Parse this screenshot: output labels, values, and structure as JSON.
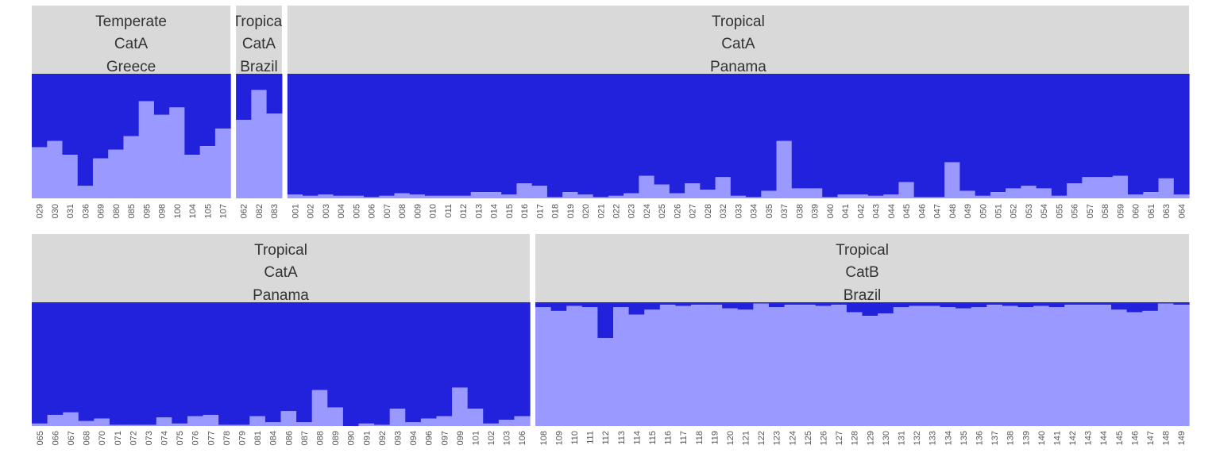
{
  "chart_data": {
    "type": "bar",
    "stacked": true,
    "ylim": [
      0,
      1
    ],
    "colors": {
      "lower": "#9999ff",
      "upper": "#2222dd",
      "strip": "#d9d9d9"
    },
    "panels": [
      {
        "row": 0,
        "strip": [
          "Temperate",
          "CatA",
          "Greece"
        ],
        "categories": [
          "029",
          "030",
          "031",
          "036",
          "069",
          "080",
          "085",
          "095",
          "098",
          "100",
          "104",
          "105",
          "107"
        ],
        "values": [
          0.41,
          0.46,
          0.35,
          0.1,
          0.32,
          0.39,
          0.5,
          0.78,
          0.67,
          0.73,
          0.35,
          0.42,
          0.56
        ]
      },
      {
        "row": 0,
        "strip": [
          "Tropical",
          "CatA",
          "Brazil"
        ],
        "categories": [
          "062",
          "082",
          "083"
        ],
        "values": [
          0.63,
          0.87,
          0.68
        ]
      },
      {
        "row": 0,
        "strip": [
          "Tropical",
          "CatA",
          "Panama"
        ],
        "categories": [
          "001",
          "002",
          "003",
          "004",
          "005",
          "006",
          "007",
          "008",
          "009",
          "010",
          "011",
          "012",
          "013",
          "014",
          "015",
          "016",
          "017",
          "018",
          "019",
          "020",
          "021",
          "022",
          "023",
          "024",
          "025",
          "026",
          "027",
          "028",
          "032",
          "033",
          "034",
          "035",
          "037",
          "038",
          "039",
          "040",
          "041",
          "042",
          "043",
          "044",
          "045",
          "046",
          "047",
          "048",
          "049",
          "050",
          "051",
          "052",
          "053",
          "054",
          "055",
          "056",
          "057",
          "058",
          "059",
          "060",
          "061",
          "063",
          "064"
        ],
        "values": [
          0.03,
          0.02,
          0.03,
          0.02,
          0.02,
          0.01,
          0.02,
          0.04,
          0.03,
          0.02,
          0.02,
          0.02,
          0.05,
          0.05,
          0.03,
          0.12,
          0.1,
          0.01,
          0.05,
          0.03,
          0.01,
          0.02,
          0.04,
          0.18,
          0.11,
          0.04,
          0.12,
          0.07,
          0.17,
          0.02,
          0.01,
          0.06,
          0.46,
          0.08,
          0.08,
          0.01,
          0.03,
          0.03,
          0.02,
          0.03,
          0.13,
          0.01,
          0.01,
          0.29,
          0.06,
          0.02,
          0.05,
          0.08,
          0.1,
          0.08,
          0.02,
          0.12,
          0.17,
          0.17,
          0.18,
          0.03,
          0.05,
          0.16,
          0.03
        ]
      },
      {
        "row": 1,
        "strip": [
          "Tropical",
          "CatA",
          "Panama"
        ],
        "categories": [
          "065",
          "066",
          "067",
          "068",
          "070",
          "071",
          "072",
          "073",
          "074",
          "075",
          "076",
          "077",
          "078",
          "079",
          "081",
          "084",
          "086",
          "087",
          "088",
          "089",
          "090",
          "091",
          "092",
          "093",
          "094",
          "096",
          "097",
          "099",
          "101",
          "102",
          "103",
          "106"
        ],
        "values": [
          0.02,
          0.09,
          0.11,
          0.04,
          0.06,
          0.01,
          0.01,
          0.01,
          0.07,
          0.02,
          0.08,
          0.09,
          0.01,
          0.01,
          0.08,
          0.03,
          0.12,
          0.03,
          0.29,
          0.15,
          0.0,
          0.02,
          0.01,
          0.14,
          0.03,
          0.06,
          0.08,
          0.31,
          0.14,
          0.02,
          0.05,
          0.08
        ]
      },
      {
        "row": 1,
        "strip": [
          "Tropical",
          "CatB",
          "Brazil"
        ],
        "categories": [
          "108",
          "109",
          "110",
          "111",
          "112",
          "113",
          "114",
          "115",
          "116",
          "117",
          "118",
          "119",
          "120",
          "121",
          "122",
          "123",
          "124",
          "125",
          "126",
          "127",
          "128",
          "129",
          "130",
          "131",
          "132",
          "133",
          "134",
          "135",
          "136",
          "137",
          "138",
          "139",
          "140",
          "141",
          "142",
          "143",
          "144",
          "145",
          "146",
          "147",
          "148",
          "149"
        ],
        "values": [
          0.96,
          0.93,
          0.97,
          0.96,
          0.71,
          0.96,
          0.9,
          0.94,
          0.98,
          0.97,
          0.98,
          0.98,
          0.95,
          0.94,
          0.99,
          0.96,
          0.98,
          0.98,
          0.97,
          0.98,
          0.92,
          0.89,
          0.91,
          0.96,
          0.97,
          0.97,
          0.96,
          0.95,
          0.96,
          0.98,
          0.97,
          0.96,
          0.97,
          0.96,
          0.98,
          0.98,
          0.98,
          0.94,
          0.92,
          0.93,
          0.99,
          0.98
        ]
      }
    ]
  }
}
